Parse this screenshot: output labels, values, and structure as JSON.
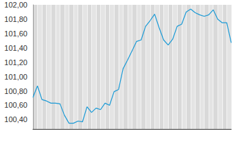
{
  "chart_data": {
    "type": "line",
    "color": "#1a9ad6",
    "grid": true,
    "tick_labels": "y",
    "values": [
      100.71,
      100.87,
      100.68,
      100.66,
      100.63,
      100.63,
      100.62,
      100.46,
      100.35,
      100.35,
      100.38,
      100.37,
      100.58,
      100.5,
      100.56,
      100.54,
      100.63,
      100.6,
      100.79,
      100.82,
      101.11,
      101.23,
      101.36,
      101.49,
      101.51,
      101.7,
      101.78,
      101.87,
      101.68,
      101.51,
      101.44,
      101.52,
      101.7,
      101.73,
      101.9,
      101.94,
      101.89,
      101.86,
      101.84,
      101.86,
      101.93,
      101.8,
      101.75,
      101.75,
      101.47
    ],
    "ylim": [
      100.27,
      102.0
    ],
    "yticks": [
      {
        "value": 100.4,
        "label": "100,40"
      },
      {
        "value": 100.6,
        "label": "100,60"
      },
      {
        "value": 100.8,
        "label": "100,80"
      },
      {
        "value": 101.0,
        "label": "101,00"
      },
      {
        "value": 101.2,
        "label": "101,20"
      },
      {
        "value": 101.4,
        "label": "101,40"
      },
      {
        "value": 101.6,
        "label": "101,60"
      },
      {
        "value": 101.8,
        "label": "101,80"
      },
      {
        "value": 102.0,
        "label": "102,00"
      }
    ]
  }
}
